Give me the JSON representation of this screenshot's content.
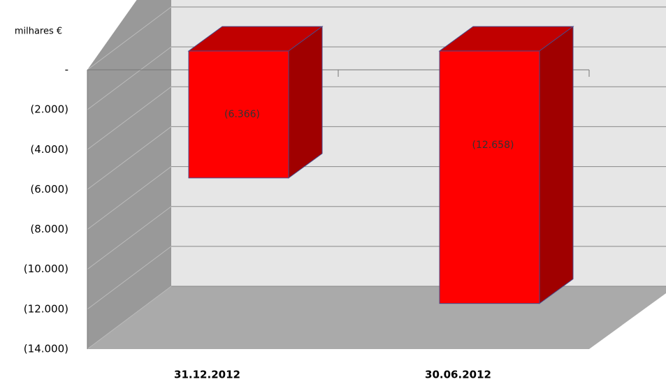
{
  "chart_data": {
    "type": "bar3d",
    "y_axis_label": "milhares €",
    "categories": [
      "31.12.2012",
      "30.06.2012"
    ],
    "values": [
      -6366,
      -12658
    ],
    "value_labels": [
      "(6.366)",
      "(12.658)"
    ],
    "color": "#ff0000",
    "ylim": [
      -14000,
      0
    ],
    "yticks": [
      {
        "value": 0,
        "label": "-"
      },
      {
        "value": -2000,
        "label": "(2.000)"
      },
      {
        "value": -4000,
        "label": "(4.000)"
      },
      {
        "value": -6000,
        "label": "(6.000)"
      },
      {
        "value": -8000,
        "label": "(8.000)"
      },
      {
        "value": -10000,
        "label": "(10.000)"
      },
      {
        "value": -12000,
        "label": "(12.000)"
      },
      {
        "value": -14000,
        "label": "(14.000)"
      }
    ],
    "grid": true
  }
}
